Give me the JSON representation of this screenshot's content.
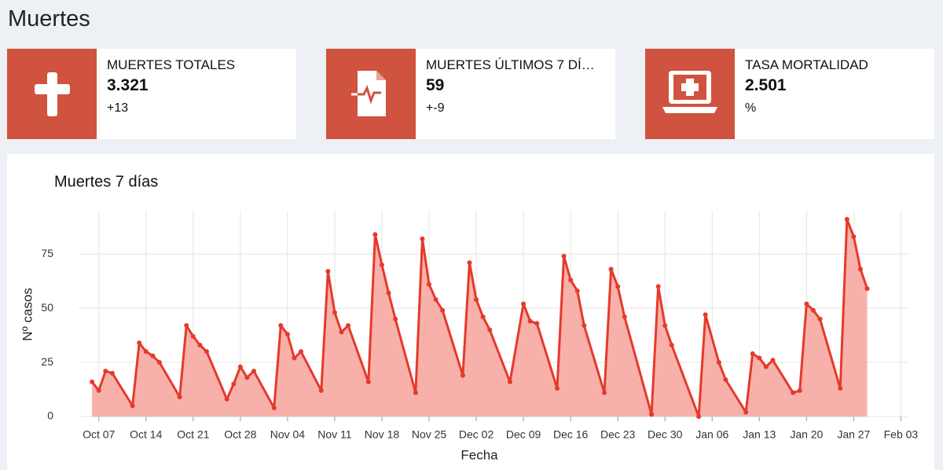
{
  "header": {
    "title": "Muertes"
  },
  "cards": [
    {
      "label": "MUERTES TOTALES",
      "value": "3.321",
      "delta": "+13"
    },
    {
      "label": "MUERTES ÚLTIMOS 7 DÍ…",
      "value": "59",
      "delta": "+-9"
    },
    {
      "label": "TASA MORTALIDAD",
      "value": "2.501",
      "delta": "%"
    }
  ],
  "chart_data": {
    "type": "area",
    "title": "Muertes 7 días",
    "x_label": "Fecha",
    "y_label": "Nº casos",
    "x": [
      "Oct 06",
      "Oct 07",
      "Oct 08",
      "Oct 09",
      "Oct 12",
      "Oct 13",
      "Oct 14",
      "Oct 15",
      "Oct 16",
      "Oct 19",
      "Oct 20",
      "Oct 21",
      "Oct 22",
      "Oct 23",
      "Oct 26",
      "Oct 27",
      "Oct 28",
      "Oct 29",
      "Oct 30",
      "Nov 02",
      "Nov 03",
      "Nov 04",
      "Nov 05",
      "Nov 06",
      "Nov 09",
      "Nov 10",
      "Nov 11",
      "Nov 12",
      "Nov 13",
      "Nov 16",
      "Nov 17",
      "Nov 18",
      "Nov 19",
      "Nov 20",
      "Nov 23",
      "Nov 24",
      "Nov 25",
      "Nov 26",
      "Nov 27",
      "Nov 30",
      "Dec 01",
      "Dec 02",
      "Dec 03",
      "Dec 04",
      "Dec 07",
      "Dec 09",
      "Dec 10",
      "Dec 11",
      "Dec 14",
      "Dec 15",
      "Dec 16",
      "Dec 17",
      "Dec 18",
      "Dec 21",
      "Dec 22",
      "Dec 23",
      "Dec 24",
      "Dec 28",
      "Dec 29",
      "Dec 30",
      "Dec 31",
      "Jan 04",
      "Jan 05",
      "Jan 07",
      "Jan 08",
      "Jan 11",
      "Jan 12",
      "Jan 13",
      "Jan 14",
      "Jan 15",
      "Jan 18",
      "Jan 19",
      "Jan 20",
      "Jan 21",
      "Jan 22",
      "Jan 25",
      "Jan 26",
      "Jan 27",
      "Jan 28",
      "Jan 29"
    ],
    "series": [
      {
        "name": "Muertes",
        "color": "#e43a2c",
        "fill": "#f7b1aa",
        "values": [
          16,
          12,
          21,
          20,
          5,
          34,
          30,
          28,
          25,
          9,
          42,
          37,
          33,
          30,
          8,
          15,
          23,
          18,
          21,
          4,
          42,
          38,
          27,
          30,
          12,
          67,
          48,
          39,
          42,
          16,
          84,
          70,
          57,
          45,
          11,
          82,
          61,
          54,
          49,
          19,
          71,
          54,
          46,
          40,
          16,
          52,
          44,
          43,
          13,
          74,
          63,
          58,
          42,
          11,
          68,
          60,
          46,
          1,
          60,
          42,
          33,
          0,
          47,
          25,
          17,
          2,
          29,
          27,
          23,
          26,
          11,
          12,
          52,
          49,
          45,
          13,
          91,
          83,
          68,
          59
        ]
      }
    ],
    "xlim": [
      "Oct 04",
      "Feb 04"
    ],
    "xticks": [
      "Oct 07",
      "Oct 14",
      "Oct 21",
      "Oct 28",
      "Nov 04",
      "Nov 11",
      "Nov 18",
      "Nov 25",
      "Dec 02",
      "Dec 09",
      "Dec 16",
      "Dec 23",
      "Dec 30",
      "Jan 06",
      "Jan 13",
      "Jan 20",
      "Jan 27",
      "Feb 03"
    ],
    "ylim": [
      0,
      95
    ],
    "yticks": [
      0,
      25,
      50,
      75
    ],
    "grid": true
  }
}
